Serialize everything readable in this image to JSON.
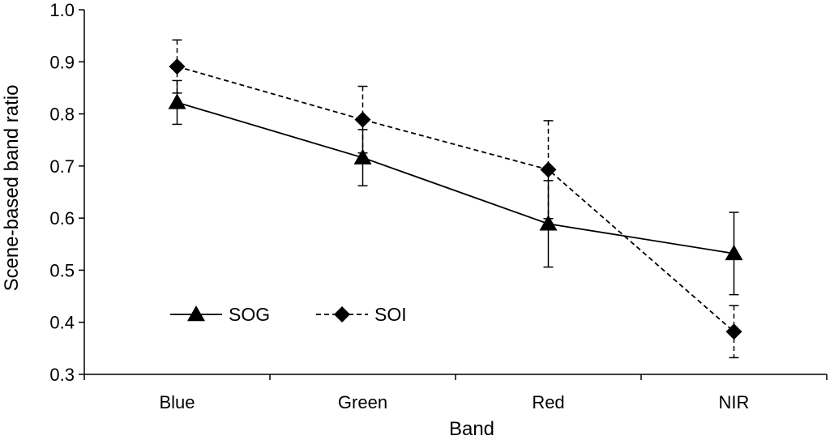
{
  "chart_data": {
    "type": "line",
    "title": "",
    "xlabel": "Band",
    "ylabel": "Scene-based band ratio",
    "categories": [
      "Blue",
      "Green",
      "Red",
      "NIR"
    ],
    "ylim": [
      0.3,
      1.0
    ],
    "yticks": [
      "0.3",
      "0.4",
      "0.5",
      "0.6",
      "0.7",
      "0.8",
      "0.9",
      "1.0"
    ],
    "grid": false,
    "legend_position": "bottom-left",
    "series": [
      {
        "name": "SOG",
        "marker": "triangle",
        "line_style": "solid",
        "values": [
          0.822,
          0.716,
          0.589,
          0.532
        ],
        "error": [
          0.042,
          0.054,
          0.083,
          0.079
        ],
        "color": "#000000"
      },
      {
        "name": "SOI",
        "marker": "diamond",
        "line_style": "dashed",
        "values": [
          0.891,
          0.789,
          0.693,
          0.382
        ],
        "error": [
          0.051,
          0.064,
          0.094,
          0.05
        ],
        "color": "#000000"
      }
    ]
  }
}
